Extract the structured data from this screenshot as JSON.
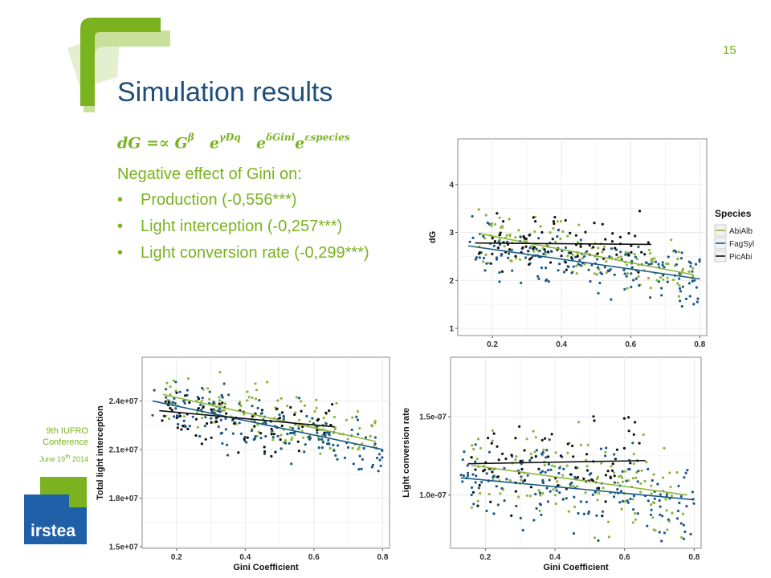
{
  "slide": {
    "number": "15",
    "title": "Simulation results",
    "formula": {
      "lhs": "dG",
      "op": "=∝",
      "g": "G",
      "g_exp": "β",
      "e1": "e",
      "e1_exp": "γDq",
      "e2": "e",
      "e2_exp": "δGini",
      "e3": "e",
      "e3_exp": "εspecies"
    },
    "lead": "Negative effect of Gini on:",
    "bullets": [
      {
        "text": "Production (-0,556***)"
      },
      {
        "text": "Light interception (-0,257***)"
      },
      {
        "text": "Light conversion rate (-0,299***)"
      }
    ],
    "bullet_glyph": "•",
    "conference": {
      "line1": "9th IUFRO",
      "line2": "Conference",
      "date": "June 19",
      "date_sup": "th",
      "year": "2014"
    },
    "logo_text": "irstea",
    "colors": {
      "accent": "#7ab31f",
      "title": "#1f4e79",
      "logo_blue": "#1f5fa8"
    }
  },
  "legend": {
    "title": "Species",
    "entries": [
      {
        "name": "AbiAlb",
        "color": "#8db53c"
      },
      {
        "name": "FagSyl",
        "color": "#1a5a87"
      },
      {
        "name": "PicAbi",
        "color": "#111111"
      }
    ]
  },
  "chart_data": [
    {
      "id": "dg",
      "type": "scatter",
      "title": "",
      "xlabel": "",
      "ylabel": "dG",
      "xlim": [
        0.1,
        0.82
      ],
      "ylim": [
        0.85,
        4.95
      ],
      "xticks": [
        0.2,
        0.4,
        0.6,
        0.8
      ],
      "xtick_labels": [
        "0.2",
        "0.4",
        "0.6",
        "0.8"
      ],
      "yticks": [
        1,
        2,
        3,
        4
      ],
      "ytick_labels": [
        "1",
        "2",
        "3",
        "4"
      ],
      "grid": true,
      "legend": "right",
      "series": [
        {
          "name": "AbiAlb",
          "color": "#8db53c",
          "n_points": 140,
          "x_range": [
            0.16,
            0.78
          ],
          "trend": [
            [
              0.16,
              2.98
            ],
            [
              0.78,
              2.12
            ]
          ],
          "spread": 0.85
        },
        {
          "name": "FagSyl",
          "color": "#1a5a87",
          "n_points": 170,
          "x_range": [
            0.13,
            0.8
          ],
          "trend": [
            [
              0.13,
              2.72
            ],
            [
              0.8,
              2.03
            ]
          ],
          "spread": 0.85
        },
        {
          "name": "PicAbi",
          "color": "#111111",
          "n_points": 80,
          "x_range": [
            0.15,
            0.66
          ],
          "trend": [
            [
              0.15,
              2.78
            ],
            [
              0.66,
              2.75
            ]
          ],
          "spread": 0.85
        }
      ]
    },
    {
      "id": "interception",
      "type": "scatter",
      "title": "",
      "xlabel": "Gini Coefficient",
      "ylabel": "Total light interception",
      "xlim": [
        0.1,
        0.82
      ],
      "ylim": [
        14900000.0,
        26700000.0
      ],
      "xticks": [
        0.2,
        0.4,
        0.6,
        0.8
      ],
      "xtick_labels": [
        "0.2",
        "0.4",
        "0.6",
        "0.8"
      ],
      "yticks": [
        15000000.0,
        18000000.0,
        21000000.0,
        24000000.0
      ],
      "ytick_labels": [
        "1.5e+07",
        "1.8e+07",
        "2.1e+07",
        "2.4e+07"
      ],
      "grid": true,
      "series": [
        {
          "name": "AbiAlb",
          "color": "#8db53c",
          "n_points": 140,
          "x_range": [
            0.16,
            0.78
          ],
          "trend": [
            [
              0.16,
              24400000.0
            ],
            [
              0.78,
              21500000.0
            ]
          ],
          "spread": 2600000.0
        },
        {
          "name": "FagSyl",
          "color": "#1a5a87",
          "n_points": 170,
          "x_range": [
            0.13,
            0.8
          ],
          "trend": [
            [
              0.13,
              24000000.0
            ],
            [
              0.8,
              21000000.0
            ]
          ],
          "spread": 2600000.0
        },
        {
          "name": "PicAbi",
          "color": "#111111",
          "n_points": 80,
          "x_range": [
            0.15,
            0.66
          ],
          "trend": [
            [
              0.15,
              23400000.0
            ],
            [
              0.66,
              22400000.0
            ]
          ],
          "spread": 2600000.0
        }
      ]
    },
    {
      "id": "conversion",
      "type": "scatter",
      "title": "",
      "xlabel": "Gini Coefficient",
      "ylabel": "Light conversion rate",
      "xlim": [
        0.1,
        0.82
      ],
      "ylim": [
        6.6e-08,
        1.88e-07
      ],
      "xticks": [
        0.2,
        0.4,
        0.6,
        0.8
      ],
      "xtick_labels": [
        "0.2",
        "0.4",
        "0.6",
        "0.8"
      ],
      "yticks": [
        1e-07,
        1.5e-07
      ],
      "ytick_labels": [
        "1.0e-07",
        "1.5e-07"
      ],
      "grid": true,
      "series": [
        {
          "name": "AbiAlb",
          "color": "#8db53c",
          "n_points": 140,
          "x_range": [
            0.16,
            0.78
          ],
          "trend": [
            [
              0.16,
              1.19e-07
            ],
            [
              0.78,
              1e-07
            ]
          ],
          "spread": 4.2e-08
        },
        {
          "name": "FagSyl",
          "color": "#1a5a87",
          "n_points": 170,
          "x_range": [
            0.13,
            0.8
          ],
          "trend": [
            [
              0.13,
              1.11e-07
            ],
            [
              0.8,
              9.7e-08
            ]
          ],
          "spread": 4.2e-08
        },
        {
          "name": "PicAbi",
          "color": "#111111",
          "n_points": 80,
          "x_range": [
            0.15,
            0.66
          ],
          "trend": [
            [
              0.15,
              1.2e-07
            ],
            [
              0.66,
              1.22e-07
            ]
          ],
          "spread": 4.2e-08
        }
      ]
    }
  ]
}
